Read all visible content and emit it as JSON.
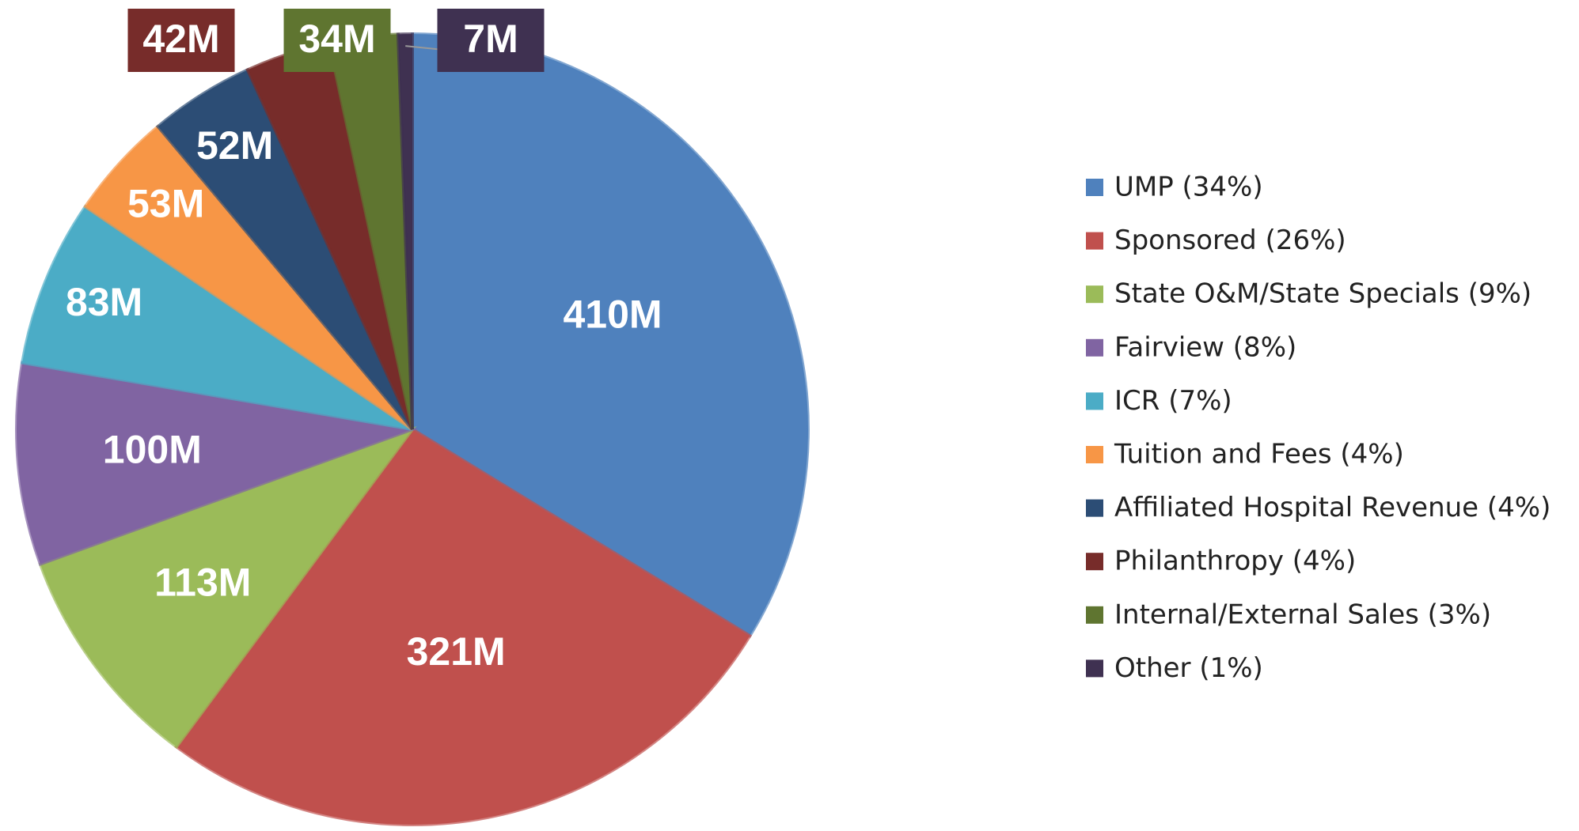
{
  "chart_data": {
    "type": "pie",
    "categories": [
      "UMP (34%)",
      "Sponsored (26%)",
      "State O&M/State Specials (9%)",
      "Fairview (8%)",
      "ICR (7%)",
      "Tuition and Fees (4%)",
      "Affiliated Hospital Revenue (4%)",
      "Philanthropy (4%)",
      "Internal/External Sales (3%)",
      "Other (1%)"
    ],
    "values": [
      410,
      321,
      113,
      100,
      83,
      53,
      52,
      42,
      34,
      7
    ],
    "value_labels": [
      "410M",
      "321M",
      "113M",
      "100M",
      "83M",
      "53M",
      "52M",
      "42M",
      "34M",
      "7M"
    ],
    "colors": [
      "#4f81bd",
      "#c0504d",
      "#9bbb59",
      "#8064a2",
      "#4bacc6",
      "#f79646",
      "#2c4d75",
      "#772c2a",
      "#5f7530",
      "#3f3151"
    ],
    "legend": "right"
  }
}
